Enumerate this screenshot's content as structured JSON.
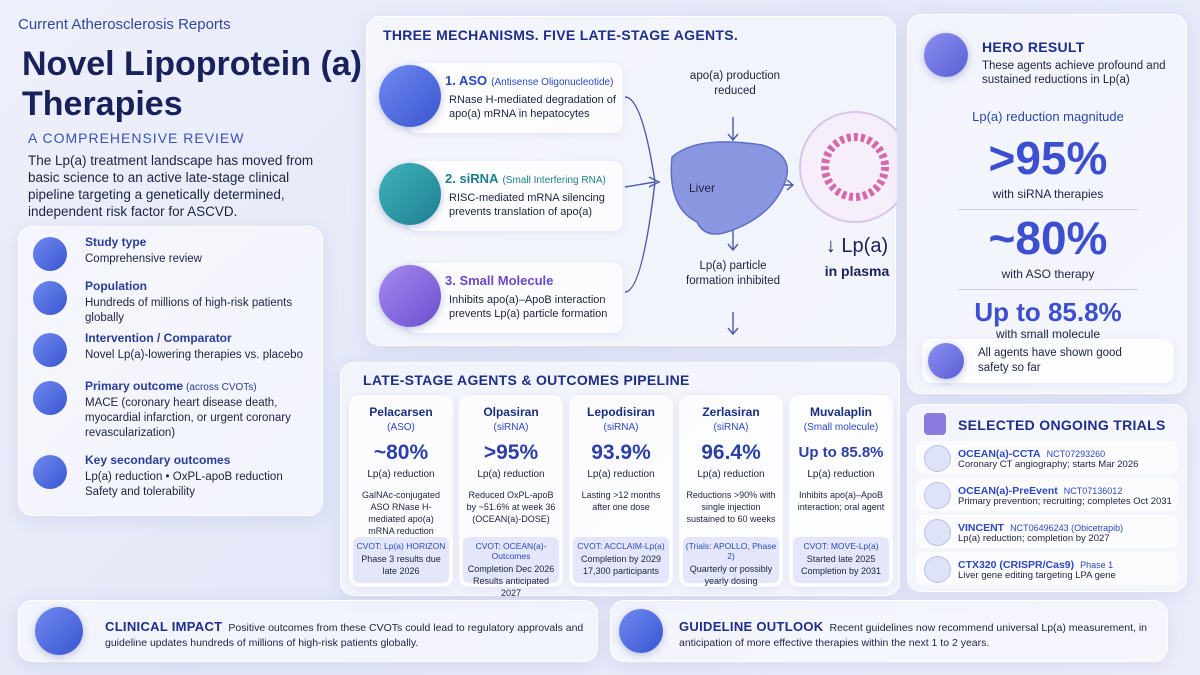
{
  "header": {
    "journal": "Current Atherosclerosis Reports",
    "title": "Novel Lipoprotein (a) Therapies",
    "subtitle": "A COMPREHENSIVE REVIEW",
    "intro": "The Lp(a) treatment landscape has moved from basic science to an active late-stage clinical pipeline targeting a genetically determined, independent risk factor for ASCVD."
  },
  "study": [
    {
      "label": "Study type",
      "lines": [
        "Comprehensive review"
      ]
    },
    {
      "label": "Population",
      "lines": [
        "Hundreds of millions of high-risk patients globally"
      ]
    },
    {
      "label": "Intervention / Comparator",
      "lines": [
        "Novel Lp(a)-lowering therapies vs. placebo"
      ]
    },
    {
      "label": "Primary outcome",
      "note": "(across CVOTs)",
      "lines": [
        "MACE (coronary heart disease death, myocardial infarction, or urgent coronary revascularization)"
      ]
    },
    {
      "label": "Key secondary outcomes",
      "lines": [
        "Lp(a) reduction • OxPL-apoB reduction",
        "Safety and tolerability"
      ]
    }
  ],
  "mechanisms": {
    "title": "THREE MECHANISMS. FIVE LATE-STAGE AGENTS.",
    "items": [
      {
        "name": "1. ASO",
        "full": "(Antisense Oligonucleotide)",
        "text": "RNase H-mediated degradation of apo(a) mRNA in hepatocytes"
      },
      {
        "name": "2. siRNA",
        "full": "(Small Interfering RNA)",
        "text": "RISC-mediated mRNA silencing prevents translation of apo(a)"
      },
      {
        "name": "3. Small Molecule",
        "text": "Inhibits apo(a)–ApoB interaction prevents Lp(a) particle formation"
      }
    ],
    "flow": {
      "top": "apo(a) production reduced",
      "organ": "Liver",
      "bottom": "Lp(a) particle formation inhibited",
      "result": "↓ Lp(a)",
      "result_sub": "in plasma"
    }
  },
  "hero": {
    "title": "HERO RESULT",
    "text": "These agents achieve profound and sustained reductions in Lp(a)",
    "magnitude_label": "Lp(a) reduction magnitude",
    "results": [
      {
        "value": ">95%",
        "text": "with siRNA therapies"
      },
      {
        "value": "~80%",
        "text": "with ASO therapy"
      },
      {
        "value": "Up to 85.8%",
        "text": "with small molecule"
      }
    ],
    "safety": "All agents have shown good safety so far"
  },
  "pipeline": {
    "title": "LATE-STAGE AGENTS & OUTCOMES PIPELINE",
    "agents": [
      {
        "name": "Pelacarsen",
        "class": "(ASO)",
        "value": "~80%",
        "metric": "Lp(a) reduction",
        "desc": "GalNAc-conjugated ASO RNase H-mediated apo(a) mRNA reduction",
        "trial": "CVOT: Lp(a) HORIZON",
        "trial_text": "Phase 3 results due late 2026"
      },
      {
        "name": "Olpasiran",
        "class": "(siRNA)",
        "value": ">95%",
        "metric": "Lp(a) reduction",
        "desc": "Reduced OxPL-apoB by ~51.6% at week 36 (OCEAN(a)-DOSE)",
        "trial": "CVOT: OCEAN(a)-Outcomes",
        "trial_text": "Completion Dec 2026 Results anticipated 2027"
      },
      {
        "name": "Lepodisiran",
        "class": "(siRNA)",
        "value": "93.9%",
        "metric": "Lp(a) reduction",
        "desc": "Lasting >12 months after one dose",
        "trial": "CVOT: ACCLAIM-Lp(a)",
        "trial_text": "Completion by 2029 17,300 participants"
      },
      {
        "name": "Zerlasiran",
        "class": "(siRNA)",
        "value": "96.4%",
        "metric": "Lp(a) reduction",
        "desc": "Reductions >90% with single injection sustained to 60 weeks",
        "trial": "(Trials: APOLLO, Phase 2)",
        "trial_text": "Quarterly or possibly yearly dosing"
      },
      {
        "name": "Muvalaplin",
        "class": "(Small molecule)",
        "value": "Up to 85.8%",
        "metric": "Lp(a) reduction",
        "desc": "Inhibits apo(a)–ApoB interaction; oral agent",
        "trial": "CVOT: MOVE-Lp(a)",
        "trial_text": "Started late 2025 Completion by 2031"
      }
    ]
  },
  "trials": {
    "title": "SELECTED ONGOING TRIALS",
    "items": [
      {
        "name": "OCEAN(a)-CCTA",
        "id": "NCT07293260",
        "text": "Coronary CT angiography; starts Mar 2026"
      },
      {
        "name": "OCEAN(a)-PreEvent",
        "id": "NCT07136012",
        "text": "Primary prevention; recruiting; completes Oct 2031"
      },
      {
        "name": "VINCENT",
        "id": "NCT06496243 (Obicetrapib)",
        "text": "Lp(a) reduction; completion by 2027"
      },
      {
        "name": "CTX320 (CRISPR/Cas9)",
        "id": "Phase 1",
        "text": "Liver gene editing targeting LPA gene"
      }
    ]
  },
  "footer": {
    "impact_title": "CLINICAL IMPACT",
    "impact_text": "Positive outcomes from these CVOTs could lead to regulatory approvals and guideline updates hundreds of millions of high-risk patients globally.",
    "outlook_title": "GUIDELINE OUTLOOK",
    "outlook_text": "Recent guidelines now recommend universal Lp(a) measurement, in anticipation of more effective therapies within the next 1 to 2 years."
  }
}
